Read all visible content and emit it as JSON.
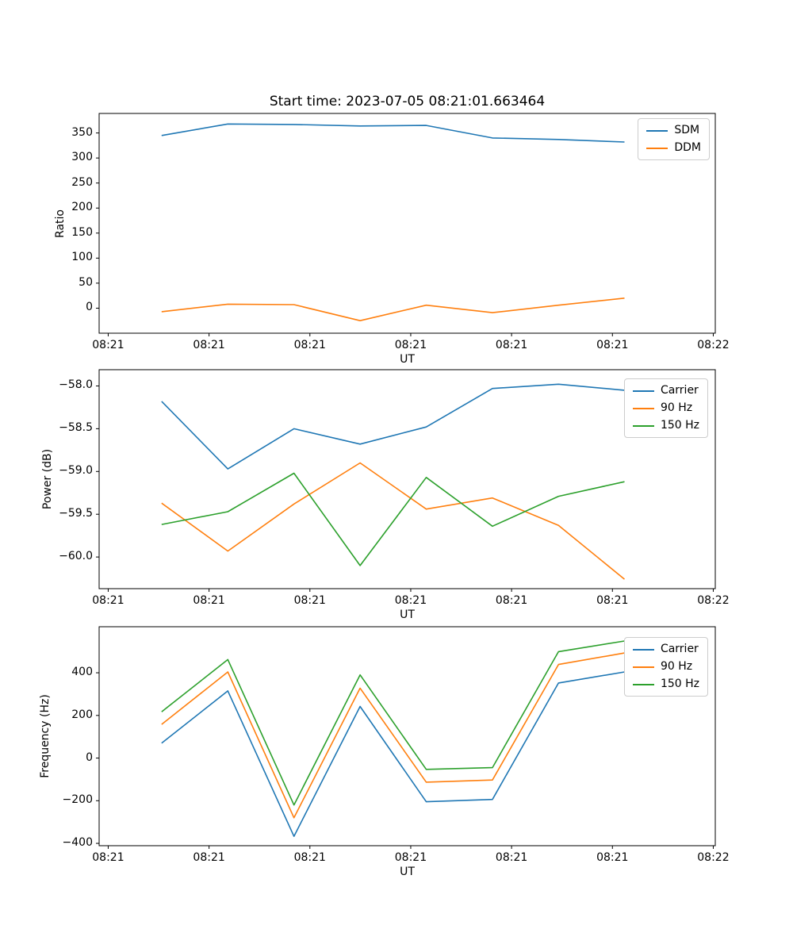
{
  "figure": {
    "background": "#ffffff",
    "text_color": "#000000",
    "spine_color": "#000000"
  },
  "palette": {
    "blue": "#1f77b4",
    "orange": "#ff7f0e",
    "green": "#2ca02c"
  },
  "chart_data": [
    {
      "type": "line",
      "title": "Start time: 2023-07-05 08:21:01.663464",
      "xlabel": "UT",
      "ylabel": "Ratio",
      "grid": false,
      "legend_position": "upper right",
      "x_seconds": [
        5.3,
        11.86,
        18.42,
        24.98,
        31.54,
        38.1,
        44.65,
        51.2
      ],
      "xlim": [
        -0.9,
        60.2
      ],
      "ylim": [
        -50,
        389
      ],
      "xticks": [
        0,
        10,
        20,
        30,
        40,
        50,
        60
      ],
      "xticklabels": [
        "08:21",
        "08:21",
        "08:21",
        "08:21",
        "08:21",
        "08:21",
        "08:22"
      ],
      "yticks": [
        0,
        50,
        100,
        150,
        200,
        250,
        300,
        350
      ],
      "yticklabels": [
        "0",
        "50",
        "100",
        "150",
        "200",
        "250",
        "300",
        "350"
      ],
      "series": [
        {
          "name": "SDM",
          "color": "#1f77b4",
          "values": [
            345,
            368,
            367,
            364,
            365,
            340,
            337,
            332
          ]
        },
        {
          "name": "DDM",
          "color": "#ff7f0e",
          "values": [
            -7,
            8,
            7,
            -25,
            6,
            -9,
            6,
            20
          ]
        }
      ]
    },
    {
      "type": "line",
      "title": "",
      "xlabel": "UT",
      "ylabel": "Power (dB)",
      "grid": false,
      "legend_position": "upper right",
      "x_seconds": [
        5.3,
        11.86,
        18.42,
        24.98,
        31.54,
        38.1,
        44.65,
        51.2
      ],
      "xlim": [
        -0.9,
        60.2
      ],
      "ylim": [
        -60.37,
        -57.81
      ],
      "xticks": [
        0,
        10,
        20,
        30,
        40,
        50,
        60
      ],
      "xticklabels": [
        "08:21",
        "08:21",
        "08:21",
        "08:21",
        "08:21",
        "08:21",
        "08:22"
      ],
      "yticks": [
        -58.0,
        -58.5,
        -59.0,
        -59.5,
        -60.0
      ],
      "yticklabels": [
        "−58.0",
        "−58.5",
        "−59.0",
        "−59.5",
        "−60.0"
      ],
      "series": [
        {
          "name": "Carrier",
          "color": "#1f77b4",
          "values": [
            -58.18,
            -58.97,
            -58.5,
            -58.68,
            -58.48,
            -58.03,
            -57.98,
            -58.05
          ]
        },
        {
          "name": "90 Hz",
          "color": "#ff7f0e",
          "values": [
            -59.37,
            -59.93,
            -59.38,
            -58.9,
            -59.44,
            -59.31,
            -59.63,
            -60.26
          ]
        },
        {
          "name": "150 Hz",
          "color": "#2ca02c",
          "values": [
            -59.62,
            -59.47,
            -59.02,
            -60.1,
            -59.07,
            -59.64,
            -59.29,
            -59.12
          ]
        }
      ]
    },
    {
      "type": "line",
      "title": "",
      "xlabel": "UT",
      "ylabel": "Frequency (Hz)",
      "grid": false,
      "legend_position": "upper right",
      "x_seconds": [
        5.3,
        11.86,
        18.42,
        24.98,
        31.54,
        38.1,
        44.65,
        51.2
      ],
      "xlim": [
        -0.9,
        60.2
      ],
      "ylim": [
        -411,
        616
      ],
      "xticks": [
        0,
        10,
        20,
        30,
        40,
        50,
        60
      ],
      "xticklabels": [
        "08:21",
        "08:21",
        "08:21",
        "08:21",
        "08:21",
        "08:21",
        "08:22"
      ],
      "yticks": [
        -400,
        -200,
        0,
        200,
        400
      ],
      "yticklabels": [
        "−400",
        "−200",
        "0",
        "200",
        "400"
      ],
      "series": [
        {
          "name": "Carrier",
          "color": "#1f77b4",
          "values": [
            70,
            315,
            -367,
            242,
            -205,
            -194,
            352,
            404
          ]
        },
        {
          "name": "90 Hz",
          "color": "#ff7f0e",
          "values": [
            158,
            404,
            -280,
            328,
            -113,
            -103,
            439,
            493
          ]
        },
        {
          "name": "150 Hz",
          "color": "#2ca02c",
          "values": [
            217,
            462,
            -220,
            390,
            -53,
            -45,
            499,
            549
          ]
        }
      ]
    }
  ]
}
